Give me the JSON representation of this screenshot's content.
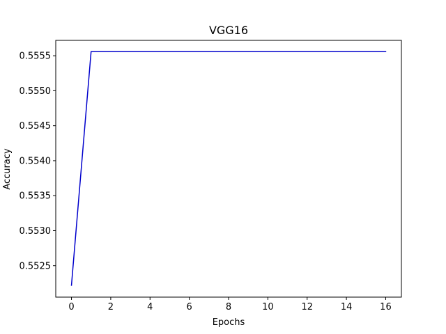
{
  "chart_data": {
    "type": "line",
    "title": "VGG16",
    "xlabel": "Epochs",
    "ylabel": "Accuracy",
    "xlim": [
      -0.8,
      16.8
    ],
    "ylim": [
      0.55205,
      0.55572
    ],
    "xticks": [
      0,
      2,
      4,
      6,
      8,
      10,
      12,
      14,
      16
    ],
    "xtick_labels": [
      "0",
      "2",
      "4",
      "6",
      "8",
      "10",
      "12",
      "14",
      "16"
    ],
    "yticks": [
      0.5525,
      0.553,
      0.5535,
      0.554,
      0.5545,
      0.555,
      0.5555
    ],
    "ytick_labels": [
      "0.5525",
      "0.5530",
      "0.5535",
      "0.5540",
      "0.5545",
      "0.5550",
      "0.5555"
    ],
    "grid": false,
    "series": [
      {
        "color": "#0000cc",
        "x": [
          0,
          1,
          2,
          3,
          4,
          5,
          6,
          7,
          8,
          9,
          10,
          11,
          12,
          13,
          14,
          15,
          16
        ],
        "y": [
          0.55222,
          0.55556,
          0.55556,
          0.55556,
          0.55556,
          0.55556,
          0.55556,
          0.55556,
          0.55556,
          0.55556,
          0.55556,
          0.55556,
          0.55556,
          0.55556,
          0.55556,
          0.55556,
          0.55556
        ]
      }
    ]
  }
}
